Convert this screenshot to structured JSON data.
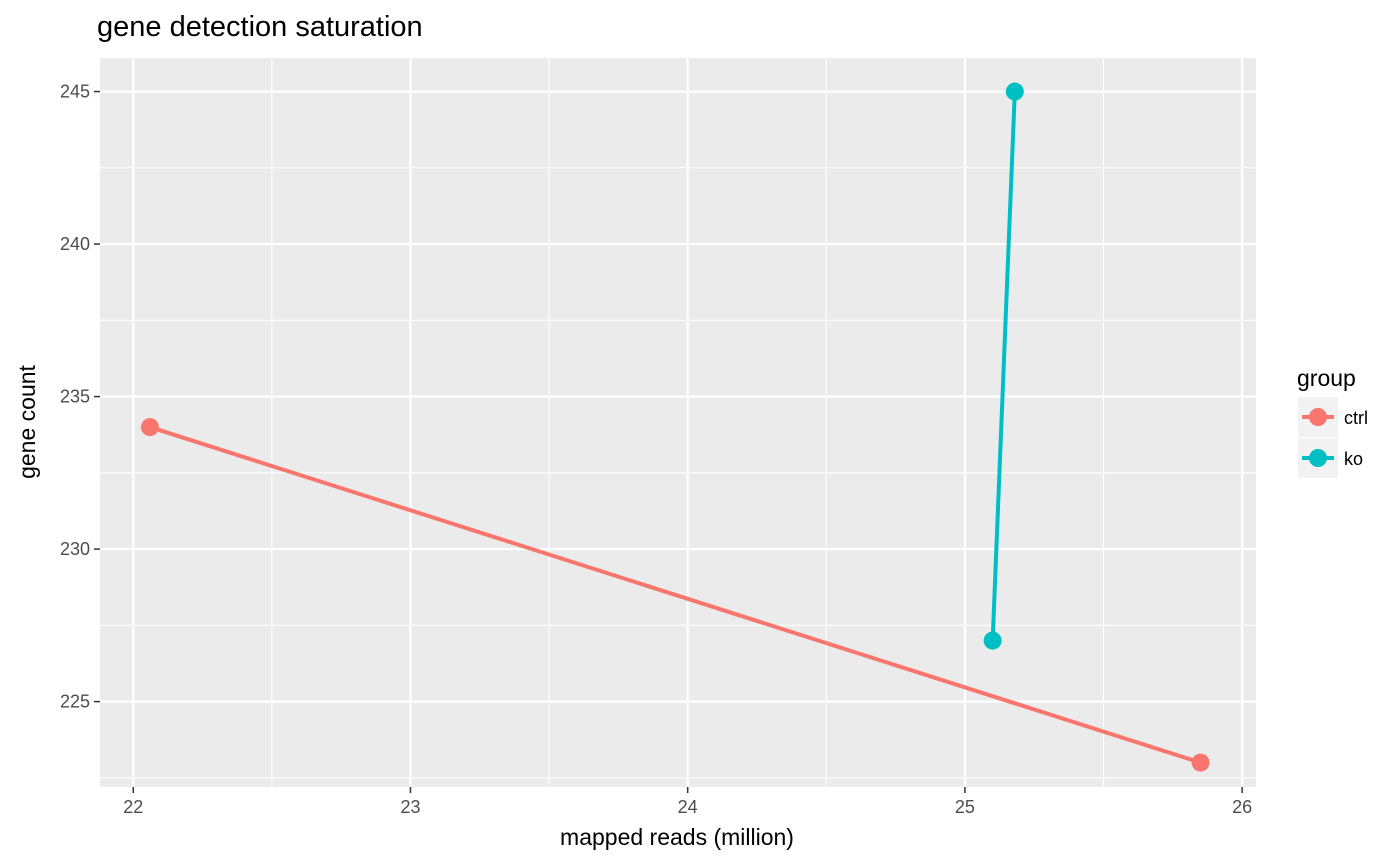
{
  "chart_data": {
    "type": "line",
    "title": "gene detection saturation",
    "xlabel": "mapped reads (million)",
    "ylabel": "gene count",
    "xlim": [
      21.88,
      26.05
    ],
    "ylim": [
      222.2,
      246.1
    ],
    "x_ticks": [
      22,
      23,
      24,
      25,
      26
    ],
    "y_ticks": [
      225,
      230,
      235,
      240,
      245
    ],
    "x_tick_labels": [
      "22",
      "23",
      "24",
      "25",
      "26"
    ],
    "y_tick_labels": [
      "225",
      "230",
      "235",
      "240",
      "245"
    ],
    "grid": true,
    "legend_title": "group",
    "legend_position": "right",
    "series": [
      {
        "name": "ctrl",
        "color": "#F8766D",
        "points": [
          {
            "x": 22.06,
            "y": 234
          },
          {
            "x": 25.85,
            "y": 223
          }
        ]
      },
      {
        "name": "ko",
        "color": "#00BFC4",
        "points": [
          {
            "x": 25.1,
            "y": 227
          },
          {
            "x": 25.18,
            "y": 245
          }
        ]
      }
    ]
  }
}
